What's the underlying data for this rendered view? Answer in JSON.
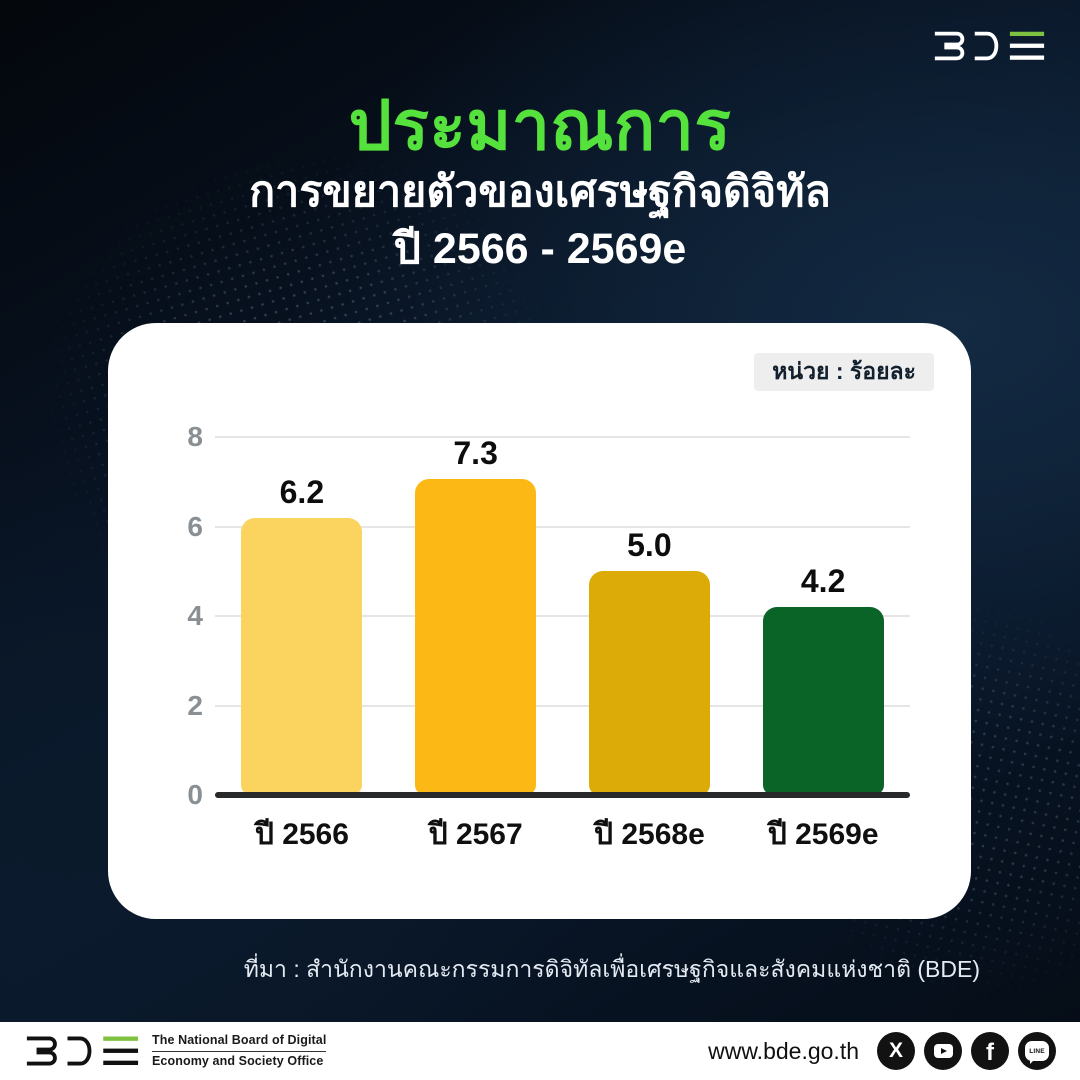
{
  "header": {
    "logo_name": "BDE",
    "logo_accent_color": "#7fc241"
  },
  "title": {
    "main": "ประมาณการ",
    "main_color": "#55e23c",
    "sub_line1": "การขยายตัวของเศรษฐกิจดิจิทัล",
    "sub_line2": "ปี 2566 - 2569e"
  },
  "card": {
    "unit_label": "หน่วย : ร้อยละ"
  },
  "chart_data": {
    "type": "bar",
    "title": "ประมาณการ การขยายตัวของเศรษฐกิจดิจิทัล ปี 2566 - 2569e",
    "unit": "หน่วย : ร้อยละ",
    "categories": [
      "ปี 2566",
      "ปี 2567",
      "ปี 2568e",
      "ปี 2569e"
    ],
    "values": [
      6.2,
      7.3,
      5.0,
      4.2
    ],
    "value_labels": [
      "6.2",
      "7.3",
      "5.0",
      "4.2"
    ],
    "bar_colors": [
      "#fbd45f",
      "#fcb916",
      "#dcab07",
      "#0a6327"
    ],
    "y_ticks": [
      8,
      6,
      4,
      2,
      0
    ],
    "ylim": [
      0,
      8
    ],
    "grid": true,
    "legend": "none",
    "xlabel": "",
    "ylabel": ""
  },
  "source": "ที่มา : สำนักงานคณะกรรมการดิจิทัลเพื่อเศรษฐกิจและสังคมแห่งชาติ (BDE)",
  "footer": {
    "org_line1": "The National Board of Digital",
    "org_line2": "Economy and Society Office",
    "website": "www.bde.go.th",
    "social": [
      "X",
      "YouTube",
      "Facebook",
      "LINE"
    ]
  }
}
